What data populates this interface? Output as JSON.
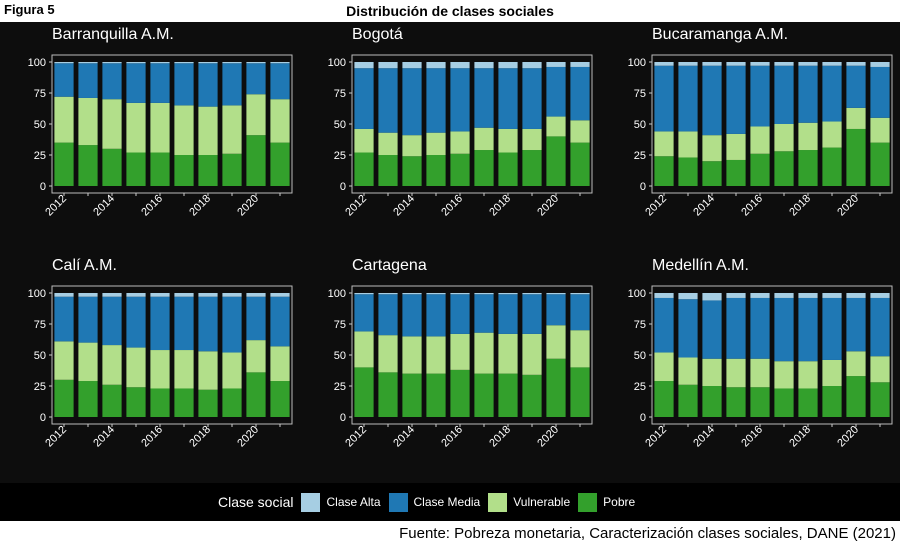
{
  "figure_label": "Figura 5",
  "title": "Distribución de clases sociales",
  "source": "Fuente: Pobreza monetaria, Caracterización clases sociales, DANE (2021)",
  "legend": {
    "title": "Clase social",
    "items": [
      {
        "label": "Clase Alta",
        "color": "#a6cee3"
      },
      {
        "label": "Clase Media",
        "color": "#1f78b4"
      },
      {
        "label": "Vulnerable",
        "color": "#b2df8a"
      },
      {
        "label": "Pobre",
        "color": "#33a02c"
      }
    ]
  },
  "chart_data": [
    {
      "type": "bar",
      "stacked": true,
      "title": "Barranquilla A.M.",
      "x": [
        2012,
        2013,
        2014,
        2015,
        2016,
        2017,
        2018,
        2019,
        2020,
        2021
      ],
      "x_tick_labels": [
        "2012",
        "2014",
        "2016",
        "2018",
        "2020"
      ],
      "y_ticks": [
        0,
        25,
        50,
        75,
        100
      ],
      "ylim": [
        0,
        100
      ],
      "series": [
        {
          "name": "Pobre",
          "values": [
            35,
            33,
            30,
            27,
            27,
            25,
            25,
            26,
            41,
            35
          ]
        },
        {
          "name": "Vulnerable",
          "values": [
            37,
            38,
            40,
            40,
            40,
            40,
            39,
            39,
            33,
            35
          ]
        },
        {
          "name": "Clase Media",
          "values": [
            27,
            28,
            29,
            32,
            32,
            34,
            35,
            34,
            25,
            29
          ]
        },
        {
          "name": "Clase Alta",
          "values": [
            1,
            1,
            1,
            1,
            1,
            1,
            1,
            1,
            1,
            1
          ]
        }
      ]
    },
    {
      "type": "bar",
      "stacked": true,
      "title": "Bogotá",
      "x": [
        2012,
        2013,
        2014,
        2015,
        2016,
        2017,
        2018,
        2019,
        2020,
        2021
      ],
      "x_tick_labels": [
        "2012",
        "2014",
        "2016",
        "2018",
        "2020"
      ],
      "y_ticks": [
        0,
        25,
        50,
        75,
        100
      ],
      "ylim": [
        0,
        100
      ],
      "series": [
        {
          "name": "Pobre",
          "values": [
            27,
            25,
            24,
            25,
            26,
            29,
            27,
            29,
            40,
            35
          ]
        },
        {
          "name": "Vulnerable",
          "values": [
            19,
            18,
            17,
            18,
            18,
            18,
            19,
            17,
            16,
            18
          ]
        },
        {
          "name": "Clase Media",
          "values": [
            49,
            52,
            54,
            52,
            51,
            48,
            49,
            49,
            40,
            43
          ]
        },
        {
          "name": "Clase Alta",
          "values": [
            5,
            5,
            5,
            5,
            5,
            5,
            5,
            5,
            4,
            4
          ]
        }
      ]
    },
    {
      "type": "bar",
      "stacked": true,
      "title": "Bucaramanga A.M.",
      "x": [
        2012,
        2013,
        2014,
        2015,
        2016,
        2017,
        2018,
        2019,
        2020,
        2021
      ],
      "x_tick_labels": [
        "2012",
        "2014",
        "2016",
        "2018",
        "2020"
      ],
      "y_ticks": [
        0,
        25,
        50,
        75,
        100
      ],
      "ylim": [
        0,
        100
      ],
      "series": [
        {
          "name": "Pobre",
          "values": [
            24,
            23,
            20,
            21,
            26,
            28,
            29,
            31,
            46,
            35
          ]
        },
        {
          "name": "Vulnerable",
          "values": [
            20,
            21,
            21,
            21,
            22,
            22,
            22,
            21,
            17,
            20
          ]
        },
        {
          "name": "Clase Media",
          "values": [
            53,
            53,
            56,
            55,
            49,
            47,
            46,
            45,
            34,
            41
          ]
        },
        {
          "name": "Clase Alta",
          "values": [
            3,
            3,
            3,
            3,
            3,
            3,
            3,
            3,
            3,
            4
          ]
        }
      ]
    },
    {
      "type": "bar",
      "stacked": true,
      "title": "Calí A.M.",
      "x": [
        2012,
        2013,
        2014,
        2015,
        2016,
        2017,
        2018,
        2019,
        2020,
        2021
      ],
      "x_tick_labels": [
        "2012",
        "2014",
        "2016",
        "2018",
        "2020"
      ],
      "y_ticks": [
        0,
        25,
        50,
        75,
        100
      ],
      "ylim": [
        0,
        100
      ],
      "series": [
        {
          "name": "Pobre",
          "values": [
            30,
            29,
            26,
            24,
            23,
            23,
            22,
            23,
            36,
            29
          ]
        },
        {
          "name": "Vulnerable",
          "values": [
            31,
            31,
            32,
            32,
            31,
            31,
            31,
            29,
            26,
            28
          ]
        },
        {
          "name": "Clase Media",
          "values": [
            36,
            37,
            39,
            41,
            43,
            43,
            44,
            45,
            35,
            40
          ]
        },
        {
          "name": "Clase Alta",
          "values": [
            3,
            3,
            3,
            3,
            3,
            3,
            3,
            3,
            3,
            3
          ]
        }
      ]
    },
    {
      "type": "bar",
      "stacked": true,
      "title": "Cartagena",
      "x": [
        2012,
        2013,
        2014,
        2015,
        2016,
        2017,
        2018,
        2019,
        2020,
        2021
      ],
      "x_tick_labels": [
        "2012",
        "2014",
        "2016",
        "2018",
        "2020"
      ],
      "y_ticks": [
        0,
        25,
        50,
        75,
        100
      ],
      "ylim": [
        0,
        100
      ],
      "series": [
        {
          "name": "Pobre",
          "values": [
            40,
            36,
            35,
            35,
            38,
            35,
            35,
            34,
            47,
            40
          ]
        },
        {
          "name": "Vulnerable",
          "values": [
            29,
            30,
            30,
            30,
            29,
            33,
            32,
            33,
            27,
            30
          ]
        },
        {
          "name": "Clase Media",
          "values": [
            30,
            33,
            34,
            34,
            32,
            31,
            32,
            32,
            25,
            29
          ]
        },
        {
          "name": "Clase Alta",
          "values": [
            1,
            1,
            1,
            1,
            1,
            1,
            1,
            1,
            1,
            1
          ]
        }
      ]
    },
    {
      "type": "bar",
      "stacked": true,
      "title": "Medellín A.M.",
      "x": [
        2012,
        2013,
        2014,
        2015,
        2016,
        2017,
        2018,
        2019,
        2020,
        2021
      ],
      "x_tick_labels": [
        "2012",
        "2014",
        "2016",
        "2018",
        "2020"
      ],
      "y_ticks": [
        0,
        25,
        50,
        75,
        100
      ],
      "ylim": [
        0,
        100
      ],
      "series": [
        {
          "name": "Pobre",
          "values": [
            29,
            26,
            25,
            24,
            24,
            23,
            23,
            25,
            33,
            28
          ]
        },
        {
          "name": "Vulnerable",
          "values": [
            23,
            22,
            22,
            23,
            23,
            22,
            22,
            21,
            20,
            21
          ]
        },
        {
          "name": "Clase Media",
          "values": [
            44,
            47,
            47,
            49,
            49,
            51,
            51,
            50,
            43,
            47
          ]
        },
        {
          "name": "Clase Alta",
          "values": [
            4,
            5,
            6,
            4,
            4,
            4,
            4,
            4,
            4,
            4
          ]
        }
      ]
    }
  ]
}
